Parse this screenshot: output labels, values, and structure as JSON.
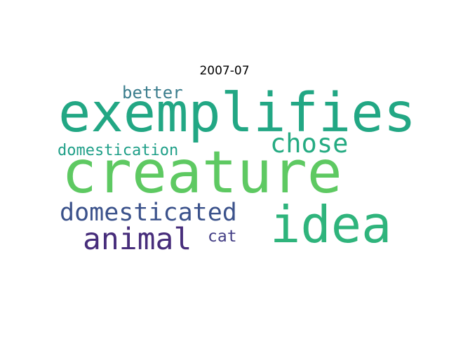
{
  "title": "2007-07",
  "words": {
    "exemplifies": {
      "text": "exemplifies",
      "color": "#22a784"
    },
    "creature": {
      "text": "creature",
      "color": "#5ec962"
    },
    "idea": {
      "text": "idea",
      "color": "#2fb47c"
    },
    "chose": {
      "text": "chose",
      "color": "#25ab82"
    },
    "better": {
      "text": "better",
      "color": "#3b7d8d"
    },
    "domestication": {
      "text": "domestication",
      "color": "#1f9f88"
    },
    "domesticated": {
      "text": "domesticated",
      "color": "#3b528b"
    },
    "animal": {
      "text": "animal",
      "color": "#472d7b"
    },
    "cat": {
      "text": "cat",
      "color": "#433e85"
    }
  }
}
